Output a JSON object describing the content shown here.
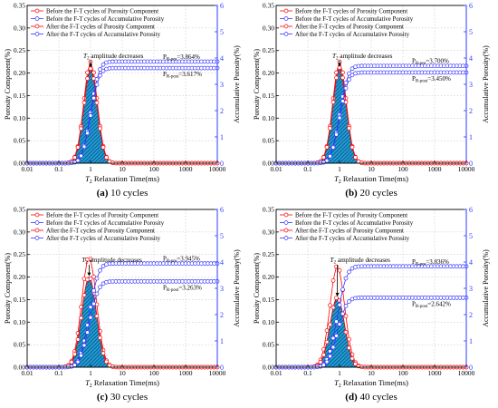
{
  "figure": {
    "x_ticks": [
      "0.01",
      "0.1",
      "1",
      "10",
      "100",
      "1000",
      "10000"
    ],
    "y_left_ticks": [
      "0.00",
      "0.05",
      "0.10",
      "0.15",
      "0.20",
      "0.25",
      "0.30",
      "0.35"
    ],
    "y_right_ticks": [
      "0",
      "1",
      "2",
      "3",
      "4",
      "5",
      "6"
    ],
    "xlabel_var": "T",
    "xlabel_sub": "2",
    "xlabel_rest": " Relaxation Time(ms)",
    "ylabel_left": "Porosity Component(%)",
    "ylabel_right": "Accumulative Porosity(%)",
    "annotation_var": "T",
    "annotation_sub": "2",
    "annotation_rest": " amplitude decreases",
    "legend": [
      "Before the F-T cycles of Porosity Component",
      "Before the F-T cycles of Accumulative Porosity",
      "After the F-T cycles of Porosity Component",
      "After the F-T cycles of Accumulative Porosity"
    ],
    "colors": {
      "red": "#ff0000",
      "blue": "#3333ff",
      "fill": "#1e9ad6",
      "axis_right": "#2a3cff"
    }
  },
  "chart_data": [
    {
      "type": "line",
      "panel_label": "(a)",
      "caption": "10 cycles",
      "x_scale": "log",
      "xlim": [
        0.01,
        10000
      ],
      "ylim_left": [
        0,
        0.35
      ],
      "ylim_right": [
        0,
        6
      ],
      "grid": true,
      "legend_position": "top-left",
      "peak_pre": 0.225,
      "peak_post": 0.21,
      "peak_T2": 1.0,
      "width_decades": 0.55,
      "final_pre": 3.864,
      "final_post": 3.617,
      "label_pre_text": "P",
      "label_pre_sub": "R-pre",
      "label_pre_value": "=3.864%",
      "label_post_text": "P",
      "label_post_sub": "R-post",
      "label_post_value": "=3.617%"
    },
    {
      "type": "line",
      "panel_label": "(b)",
      "caption": "20 cycles",
      "x_scale": "log",
      "xlim": [
        0.01,
        10000
      ],
      "ylim_left": [
        0,
        0.35
      ],
      "ylim_right": [
        0,
        6
      ],
      "grid": true,
      "legend_position": "top-left",
      "peak_pre": 0.225,
      "peak_post": 0.212,
      "peak_T2": 1.0,
      "width_decades": 0.55,
      "final_pre": 3.7,
      "final_post": 3.45,
      "label_pre_text": "P",
      "label_pre_sub": "R-pre",
      "label_pre_value": "=3.700%",
      "label_post_text": "P",
      "label_post_sub": "R-post",
      "label_post_value": "=3.450%"
    },
    {
      "type": "line",
      "panel_label": "(c)",
      "caption": "30 cycles",
      "x_scale": "log",
      "xlim": [
        0.01,
        10000
      ],
      "ylim_left": [
        0,
        0.35
      ],
      "ylim_right": [
        0,
        6
      ],
      "grid": true,
      "legend_position": "top-left",
      "peak_pre": 0.245,
      "peak_post": 0.2,
      "peak_T2": 0.9,
      "width_decades": 0.6,
      "final_pre": 3.945,
      "final_post": 3.263,
      "label_pre_text": "P",
      "label_pre_sub": "R-pre",
      "label_pre_value": "=3.945%",
      "label_post_text": "P",
      "label_post_sub": "R-post",
      "label_post_value": "=3.263%"
    },
    {
      "type": "line",
      "panel_label": "(d)",
      "caption": "40 cycles",
      "x_scale": "log",
      "xlim": [
        0.01,
        10000
      ],
      "ylim_left": [
        0,
        0.35
      ],
      "ylim_right": [
        0,
        6
      ],
      "grid": true,
      "legend_position": "top-left",
      "peak_pre": 0.225,
      "peak_post": 0.155,
      "peak_T2": 0.85,
      "width_decades": 0.6,
      "final_pre": 3.836,
      "final_post": 2.642,
      "label_pre_text": "P",
      "label_pre_sub": "R-pre",
      "label_pre_value": "=3.836%",
      "label_post_text": "P",
      "label_post_sub": "R-post",
      "label_post_value": "=2.642%"
    }
  ]
}
